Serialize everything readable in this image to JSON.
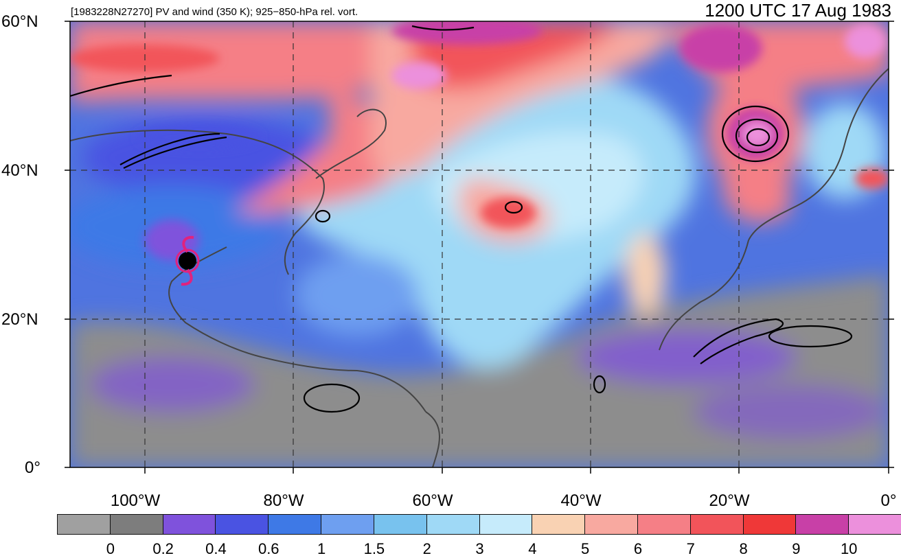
{
  "header": {
    "left": "[1983228N27270] PV and wind (350 K); 925−850-hPa rel. vort.",
    "right": "1200 UTC 17 Aug 1983"
  },
  "axes": {
    "lat_labels": [
      "60°N",
      "40°N",
      "20°N",
      "0°"
    ],
    "lon_labels": [
      "100°W",
      "80°W",
      "60°W",
      "40°W",
      "20°W",
      "0°"
    ]
  },
  "map": {
    "region": "North Atlantic",
    "lat_range": [
      0,
      60
    ],
    "lon_range": [
      -110,
      0
    ],
    "storm_symbol": "hurricane-icon",
    "storm_color": "#e0237e"
  },
  "colorbar": {
    "colors": [
      "#a0a0a0",
      "#7d7d7d",
      "#7f52dc",
      "#4a53e2",
      "#3e79e6",
      "#6e9ff0",
      "#78c2ee",
      "#9fd9f6",
      "#c6ebfb",
      "#f9d2b3",
      "#f8a9a0",
      "#f57f86",
      "#f2545a",
      "#ef3838",
      "#c840a7",
      "#ec90dc"
    ],
    "labels": [
      "0",
      "0.2",
      "0.4",
      "0.6",
      "1",
      "1.5",
      "2",
      "3",
      "4",
      "5",
      "6",
      "7",
      "8",
      "9",
      "10"
    ]
  }
}
